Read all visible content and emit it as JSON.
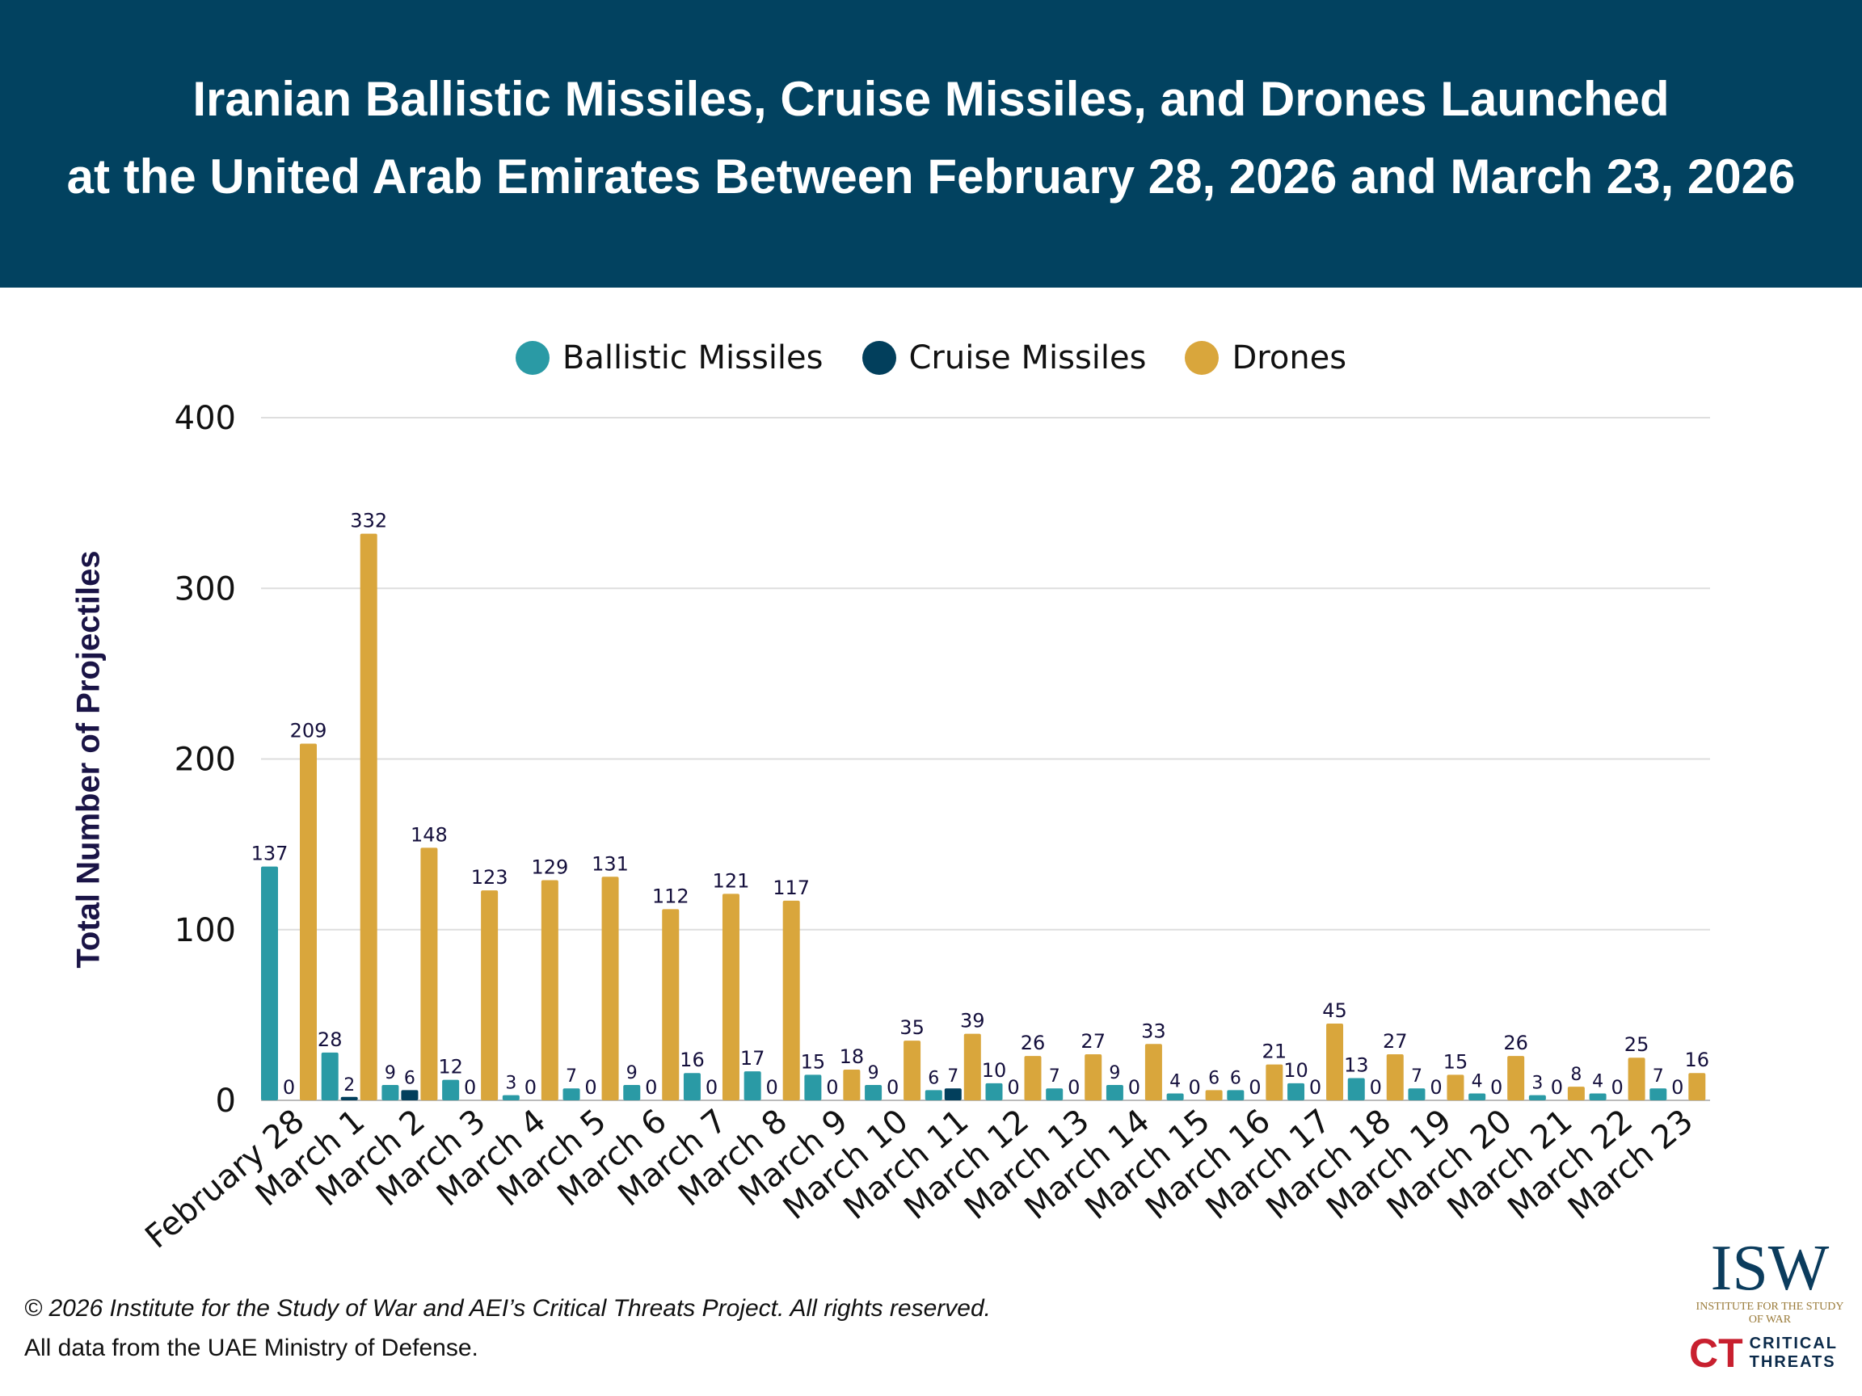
{
  "header": {
    "title_line1": "Iranian Ballistic Missiles, Cruise Missiles, and Drones Launched",
    "title_line2": "at the United Arab Emirates Between February 28, 2026 and March 23, 2026"
  },
  "footer": {
    "copyright": "© 2026 Institute for the Study of War and AEI’s Critical Threats Project. All rights reserved.",
    "source": "All data from the UAE Ministry of Defense."
  },
  "logos": {
    "isw": "ISW",
    "isw_sub": "INSTITUTE FOR THE STUDY OF WAR",
    "ct": "CT",
    "ct_text": "CRITICAL THREATS"
  },
  "chart_data": {
    "type": "bar",
    "title": "Iranian Ballistic Missiles, Cruise Missiles, and Drones Launched at the United Arab Emirates Between February 28, 2026 and March 23, 2026",
    "xlabel": "",
    "ylabel": "Total Number of Projectiles",
    "ylim": [
      0,
      400
    ],
    "yticks": [
      0,
      100,
      200,
      300,
      400
    ],
    "grid": true,
    "legend": "top",
    "categories": [
      "February 28",
      "March 1",
      "March 2",
      "March 3",
      "March 4",
      "March 5",
      "March 6",
      "March 7",
      "March 8",
      "March 9",
      "March 10",
      "March 11",
      "March 12",
      "March 13",
      "March 14",
      "March 15",
      "March 16",
      "March 17",
      "March 18",
      "March 19",
      "March 20",
      "March 21",
      "March 22",
      "March 23"
    ],
    "series": [
      {
        "name": "Ballistic Missiles",
        "color": "#2a9aa5",
        "values": [
          137,
          28,
          9,
          12,
          3,
          7,
          9,
          16,
          17,
          15,
          9,
          6,
          10,
          7,
          9,
          4,
          6,
          10,
          13,
          7,
          4,
          3,
          4,
          7
        ]
      },
      {
        "name": "Cruise Missiles",
        "color": "#023f5c",
        "values": [
          0,
          2,
          6,
          0,
          0,
          0,
          0,
          0,
          0,
          0,
          0,
          7,
          0,
          0,
          0,
          0,
          0,
          0,
          0,
          0,
          0,
          0,
          0,
          0
        ]
      },
      {
        "name": "Drones",
        "color": "#d9a63c",
        "values": [
          209,
          332,
          148,
          123,
          129,
          131,
          112,
          121,
          117,
          18,
          35,
          39,
          26,
          27,
          33,
          6,
          21,
          45,
          27,
          15,
          26,
          8,
          25,
          16
        ]
      }
    ]
  }
}
